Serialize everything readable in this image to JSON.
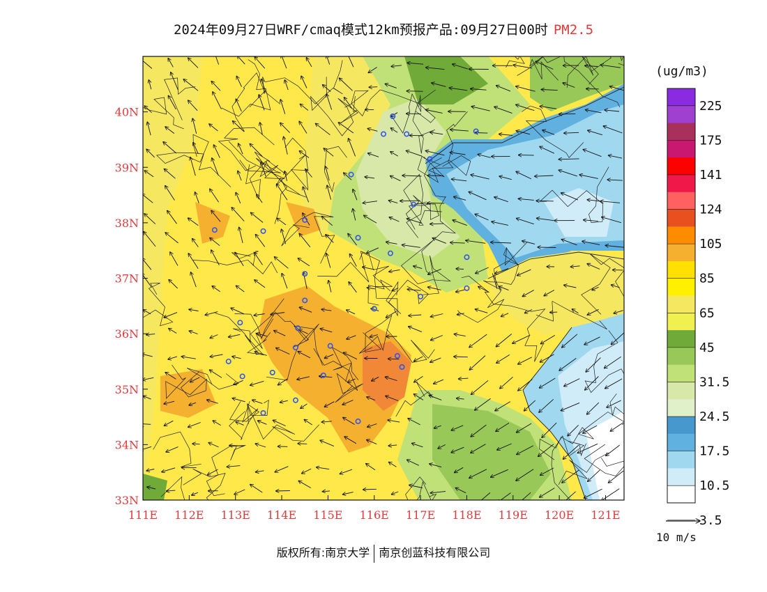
{
  "title": {
    "main": "2024年09月27日WRF/cmaq模式12km预报产品:09月27日00时",
    "species": "PM2.5"
  },
  "legend": {
    "unit": "(ug/m3)",
    "labels": [
      "225",
      "175",
      "141",
      "124",
      "105",
      "85",
      "65",
      "45",
      "31.5",
      "24.5",
      "17.5",
      "10.5",
      "3.5"
    ],
    "colors_top_to_bottom": [
      "#8a2be2",
      "#a040d0",
      "#a8305a",
      "#c81870",
      "#ff0000",
      "#f01848",
      "#ff6060",
      "#e85020",
      "#ff8c00",
      "#f5b030",
      "#ffe000",
      "#fff000",
      "#f5e860",
      "#f0f050",
      "#70aa38",
      "#98c858",
      "#c0e078",
      "#d8e8a8",
      "#e0f0c8",
      "#4898d0",
      "#60b0e0",
      "#a0d8f0",
      "#d0ecf8",
      "#ffffff"
    ]
  },
  "axes": {
    "x_ticks": [
      "111E",
      "112E",
      "113E",
      "114E",
      "115E",
      "116E",
      "117E",
      "118E",
      "119E",
      "120E",
      "121E"
    ],
    "y_ticks": [
      "33N",
      "34N",
      "35N",
      "36N",
      "37N",
      "38N",
      "39N",
      "40N"
    ],
    "lon_range": [
      111,
      121.4
    ],
    "lat_range": [
      33,
      41
    ]
  },
  "reference_vector": {
    "label": "10 m/s",
    "speed": 10
  },
  "copyright": {
    "left": "版权所有:南京大学",
    "right": "南京创蓝科技有限公司"
  },
  "colors": {
    "axis_label": "#e03a3a",
    "species_label": "#e03a3a",
    "high": "#f0a040",
    "mid": "#ffe84a",
    "low_green": "#98c858",
    "sea": "#a0d8f0",
    "station": "#3355ee"
  },
  "stations": [
    [
      116.4,
      39.92
    ],
    [
      116.2,
      39.6
    ],
    [
      116.7,
      39.6
    ],
    [
      118.2,
      39.65
    ],
    [
      117.2,
      39.15
    ],
    [
      115.5,
      38.87
    ],
    [
      116.85,
      38.33
    ],
    [
      114.5,
      38.05
    ],
    [
      113.6,
      37.85
    ],
    [
      112.55,
      37.87
    ],
    [
      115.65,
      37.73
    ],
    [
      116.35,
      37.45
    ],
    [
      118.0,
      37.38
    ],
    [
      114.5,
      37.08
    ],
    [
      118.0,
      36.82
    ],
    [
      117.0,
      36.67
    ],
    [
      114.5,
      36.6
    ],
    [
      116.0,
      36.45
    ],
    [
      113.1,
      36.2
    ],
    [
      114.35,
      36.1
    ],
    [
      114.3,
      35.75
    ],
    [
      115.05,
      35.78
    ],
    [
      112.85,
      35.5
    ],
    [
      116.6,
      35.4
    ],
    [
      113.8,
      35.3
    ],
    [
      113.15,
      35.23
    ],
    [
      114.9,
      35.25
    ],
    [
      116.5,
      35.6
    ],
    [
      114.3,
      34.8
    ],
    [
      113.6,
      34.57
    ],
    [
      115.65,
      34.42
    ]
  ]
}
